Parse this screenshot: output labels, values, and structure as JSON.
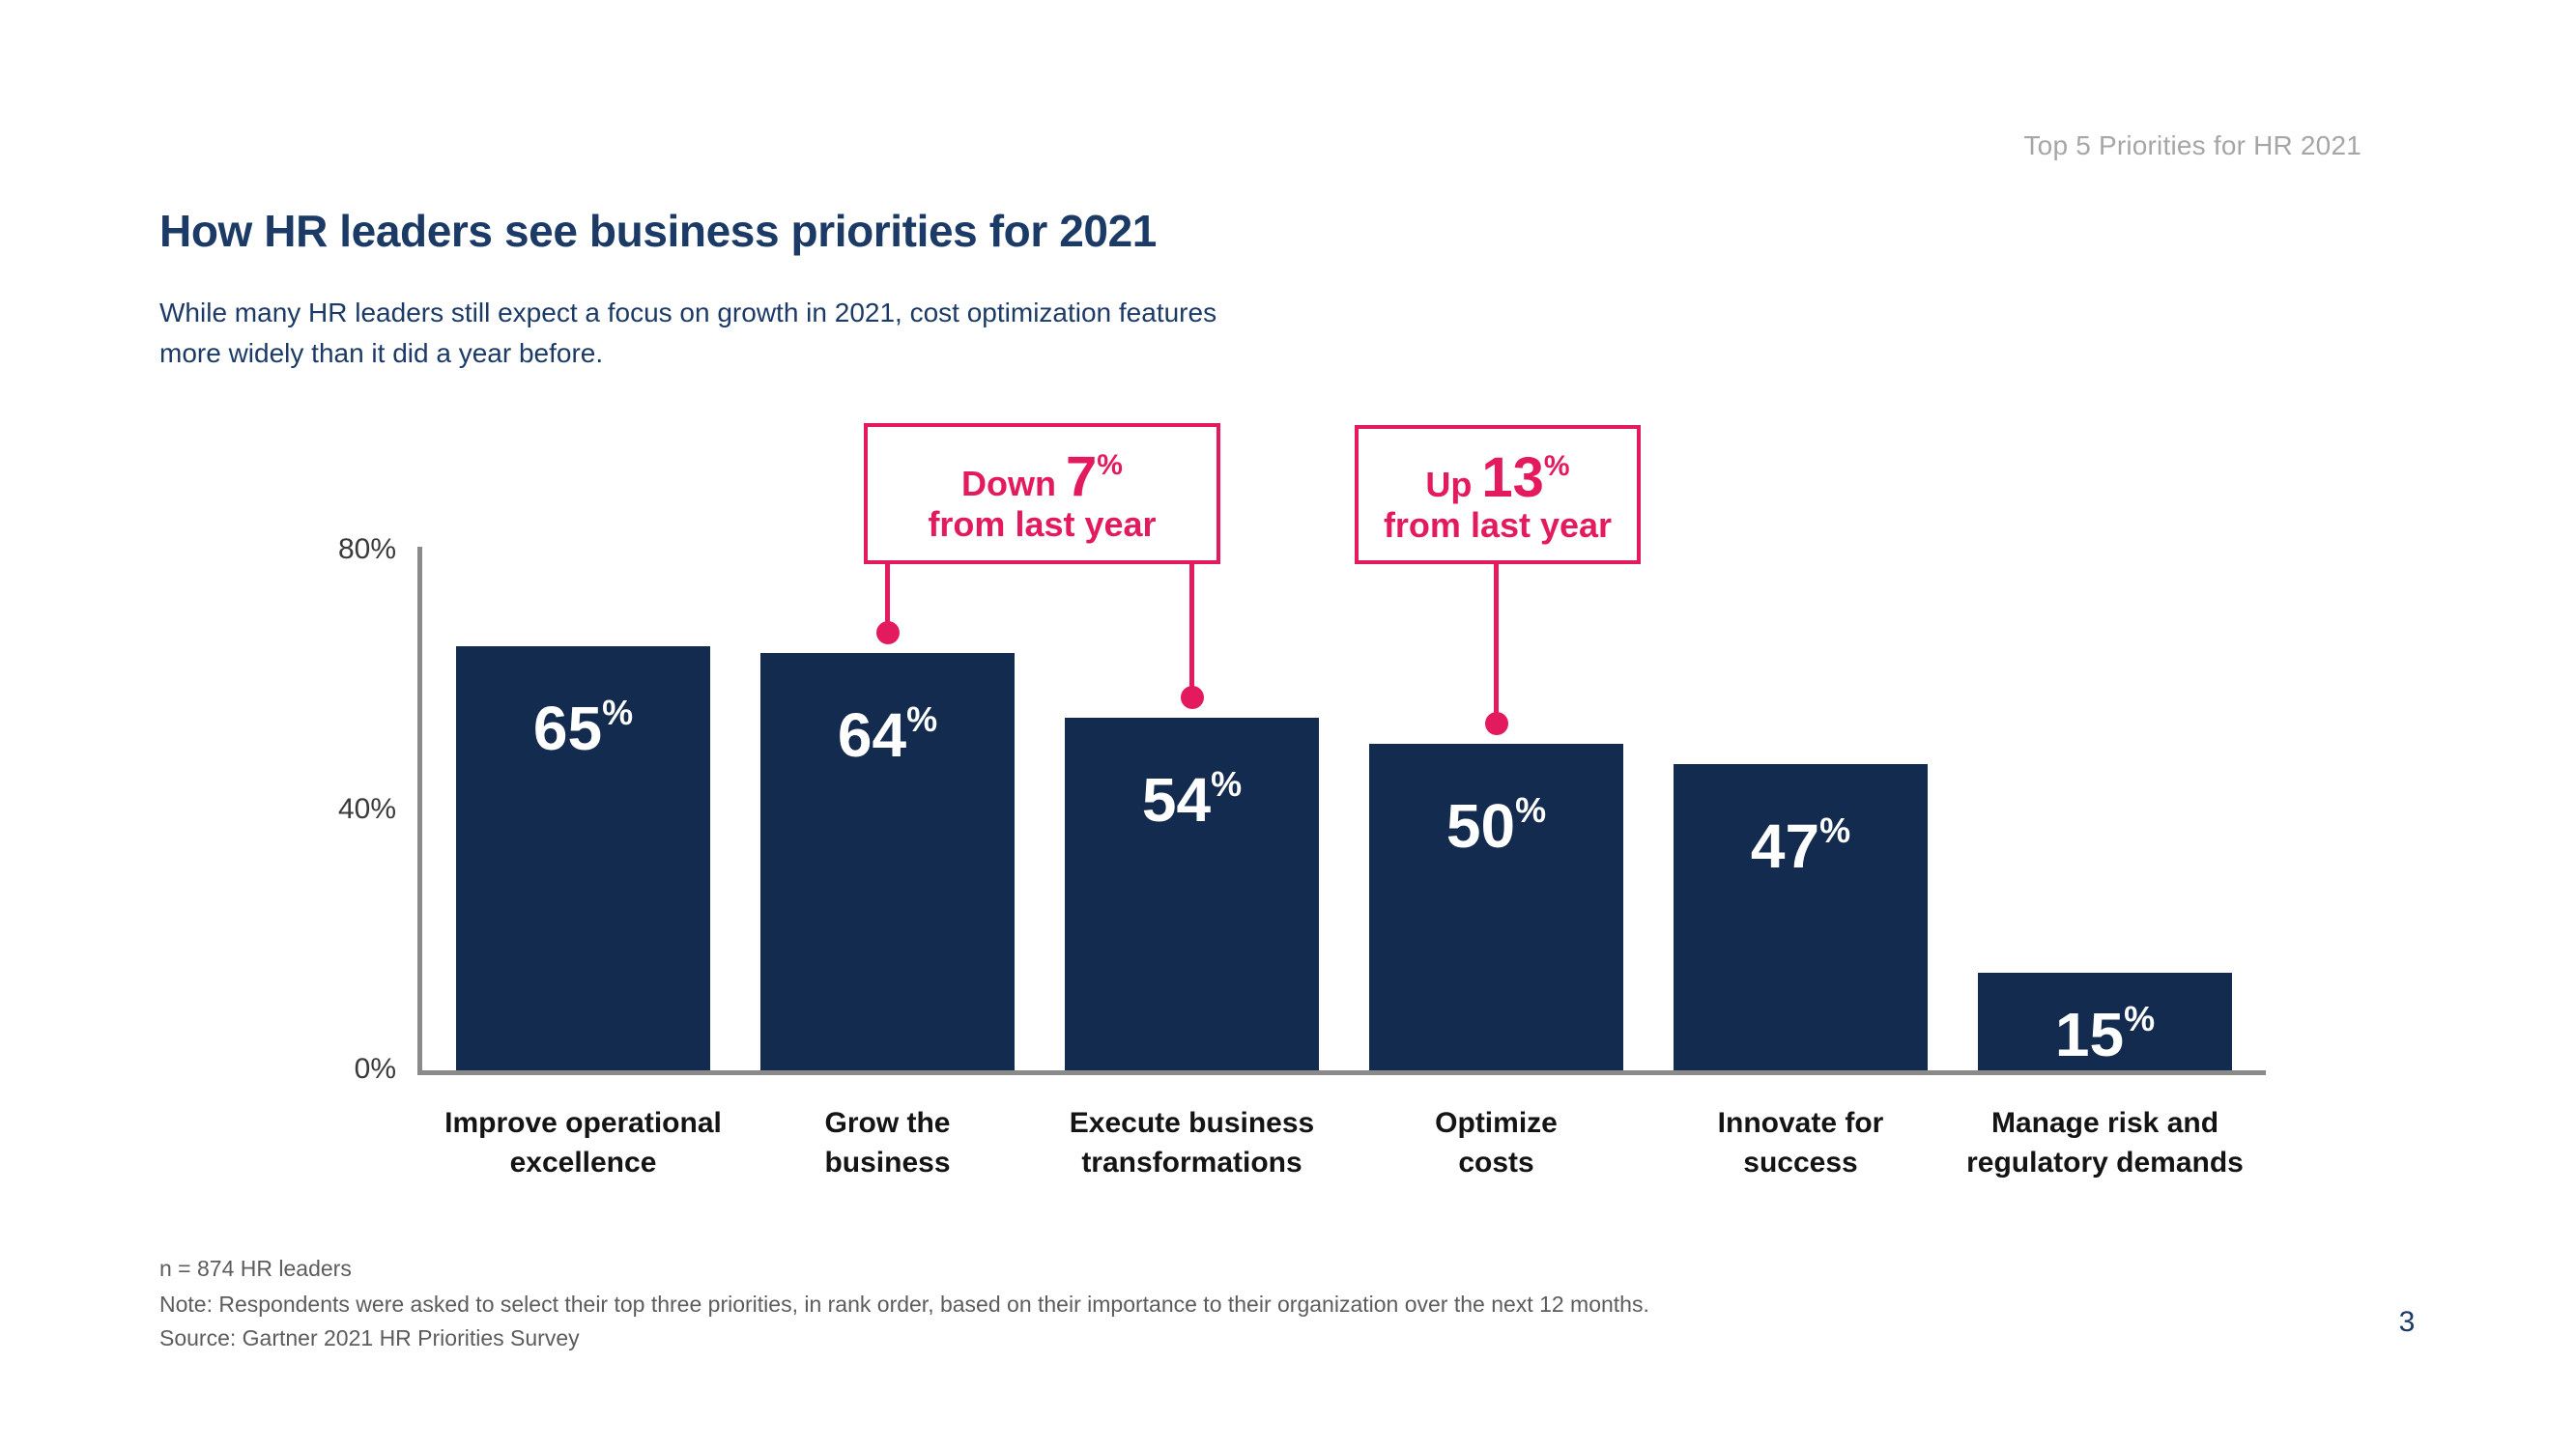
{
  "header": {
    "doc_label": "Top 5 Priorities for HR 2021"
  },
  "title": "How HR leaders see business priorities for 2021",
  "subtitle": {
    "lines": [
      "While many HR leaders still expect a focus on growth in 2021, cost optimization features",
      "more widely than it did a year before."
    ]
  },
  "chart_data": {
    "type": "bar",
    "title": "How HR leaders see business priorities for 2021",
    "categories": [
      "Improve operational excellence",
      "Grow the business",
      "Execute business transformations",
      "Optimize costs",
      "Innovate for success",
      "Manage risk and regulatory demands"
    ],
    "category_lines": [
      [
        "Improve operational",
        "excellence"
      ],
      [
        "Grow the",
        "business"
      ],
      [
        "Execute business",
        "transformations"
      ],
      [
        "Optimize",
        "costs"
      ],
      [
        "Innovate for",
        "success"
      ],
      [
        "Manage risk and",
        "regulatory demands"
      ]
    ],
    "values": [
      65,
      64,
      54,
      50,
      47,
      15
    ],
    "unit": "%",
    "xlabel": "",
    "ylabel": "",
    "ylim": [
      0,
      80
    ],
    "yticks": [
      "80%",
      "40%",
      "0%"
    ],
    "grid": false,
    "legend": null,
    "bar_color": "#122b4e",
    "value_label_color": "#ffffff",
    "annotation_color": "#e31a5d",
    "annotations": [
      {
        "prefix": "Down",
        "value": "7",
        "unit": "%",
        "suffix": "from last year",
        "target_categories": [
          "Grow the business",
          "Execute business transformations"
        ],
        "target_bar_indexes": [
          1,
          2
        ]
      },
      {
        "prefix": "Up",
        "value": "13",
        "unit": "%",
        "suffix": "from last year",
        "target_categories": [
          "Optimize costs"
        ],
        "target_bar_indexes": [
          3
        ]
      }
    ]
  },
  "footnotes": {
    "n": "n = 874 HR leaders",
    "note": "Note: Respondents were asked to select their top three priorities, in rank order, based on their importance to their organization over the next 12 months.",
    "source": "Source: Gartner 2021 HR Priorities Survey"
  },
  "page_number": "3",
  "colors": {
    "navy_bar": "#122b4e",
    "navy_text": "#1b3a66",
    "pink_accent": "#e31a5d",
    "axis_gray": "#8a8a8a",
    "muted_gray": "#a6a6a6"
  }
}
